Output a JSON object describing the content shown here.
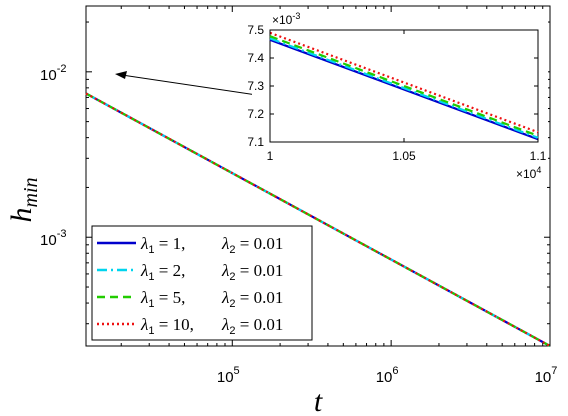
{
  "chart_data": [
    {
      "type": "line",
      "title": "",
      "xlabel": "t",
      "ylabel_main": "h",
      "ylabel_sub": "min",
      "xscale": "log",
      "yscale": "log",
      "xlim": [
        12000,
        10000000
      ],
      "ylim": [
        0.00022,
        0.025
      ],
      "x_ticks": [
        {
          "value": 100000,
          "base": "10",
          "exp": "5"
        },
        {
          "value": 1000000,
          "base": "10",
          "exp": "6"
        },
        {
          "value": 10000000,
          "base": "10",
          "exp": "7"
        }
      ],
      "y_ticks": [
        {
          "value": 0.001,
          "base": "10",
          "exp": "-3"
        },
        {
          "value": 0.01,
          "base": "10",
          "exp": "-2"
        }
      ],
      "grid": false,
      "legend_position": "bottom-left",
      "series": [
        {
          "name": "λ1 = 1,   λ2 = 0.01",
          "legend": {
            "l1": "1,",
            "l2": "0.01"
          },
          "color": "#0000cc",
          "dash": "solid",
          "x": [
            12000,
            10000000
          ],
          "y": [
            0.0074,
            0.00022
          ]
        },
        {
          "name": "λ1 = 2,   λ2 = 0.01",
          "legend": {
            "l1": "2,",
            "l2": "0.01"
          },
          "color": "#00d4ee",
          "dash": "dashdot",
          "x": [
            12000,
            10000000
          ],
          "y": [
            0.0074,
            0.00022
          ]
        },
        {
          "name": "λ1 = 5,   λ2 = 0.01",
          "legend": {
            "l1": "5,",
            "l2": "0.01"
          },
          "color": "#22cc00",
          "dash": "dashed",
          "x": [
            12000,
            10000000
          ],
          "y": [
            0.0074,
            0.00022
          ]
        },
        {
          "name": "λ1 = 10, λ2 = 0.01",
          "legend": {
            "l1": "10,",
            "l2": "0.01"
          },
          "color": "#ee1111",
          "dash": "dotted",
          "x": [
            12000,
            10000000
          ],
          "y": [
            0.0074,
            0.00022
          ]
        }
      ],
      "annotation": "arrow from inset to main curve near t = 1e4"
    },
    {
      "type": "line",
      "title": "",
      "xscale": "linear",
      "yscale": "linear",
      "xlim": [
        10000,
        11000
      ],
      "ylim": [
        0.0071,
        0.0075
      ],
      "x_ticks": [
        {
          "value": 10000,
          "label": "1"
        },
        {
          "value": 10500,
          "label": "1.05"
        },
        {
          "value": 11000,
          "label": "1.1"
        }
      ],
      "y_ticks": [
        {
          "value": 0.0071,
          "label": "7.1"
        },
        {
          "value": 0.0072,
          "label": "7.2"
        },
        {
          "value": 0.0073,
          "label": "7.3"
        },
        {
          "value": 0.0074,
          "label": "7.4"
        },
        {
          "value": 0.0075,
          "label": "7.5"
        }
      ],
      "y_multiplier": {
        "base": "×10",
        "exp": "-3"
      },
      "x_multiplier": {
        "base": "×10",
        "exp": "4"
      },
      "grid": false,
      "series": [
        {
          "color": "#0000cc",
          "dash": "solid",
          "x": [
            10000,
            11000
          ],
          "y": [
            0.007465,
            0.00711
          ]
        },
        {
          "color": "#00d4ee",
          "dash": "dashdot",
          "x": [
            10000,
            11000
          ],
          "y": [
            0.00747,
            0.007115
          ]
        },
        {
          "color": "#22cc00",
          "dash": "dashed",
          "x": [
            10000,
            11000
          ],
          "y": [
            0.007478,
            0.007122
          ]
        },
        {
          "color": "#ee1111",
          "dash": "dotted",
          "x": [
            10000,
            11000
          ],
          "y": [
            0.00749,
            0.007135
          ]
        }
      ]
    }
  ]
}
